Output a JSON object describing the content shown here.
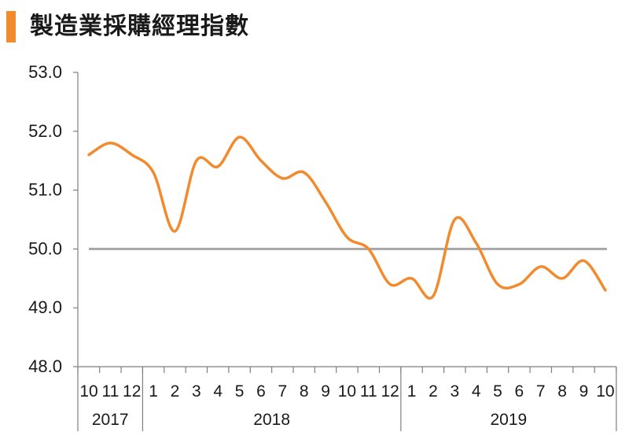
{
  "title": "製造業採購經理指數",
  "colors": {
    "accent": "#f28a2e",
    "line": "#f28a2e",
    "reference": "#a6a6a6",
    "axis": "#7f7f7f"
  },
  "chart_data": {
    "type": "line",
    "title": "製造業採購經理指數",
    "xlabel": "",
    "ylabel": "",
    "ylim": [
      48.0,
      53.0
    ],
    "y_ticks": [
      "53.0",
      "52.0",
      "51.0",
      "50.0",
      "49.0",
      "48.0"
    ],
    "categories": [
      "10",
      "11",
      "12",
      "1",
      "2",
      "3",
      "4",
      "5",
      "6",
      "7",
      "8",
      "9",
      "10",
      "11",
      "12",
      "1",
      "2",
      "3",
      "4",
      "5",
      "6",
      "7",
      "8",
      "9",
      "10"
    ],
    "year_groups": [
      {
        "label": "2017",
        "count": 3
      },
      {
        "label": "2018",
        "count": 12
      },
      {
        "label": "2019",
        "count": 10
      }
    ],
    "series": [
      {
        "values": [
          51.6,
          51.8,
          51.6,
          51.3,
          50.3,
          51.5,
          51.4,
          51.9,
          51.5,
          51.2,
          51.3,
          50.8,
          50.2,
          50.0,
          49.4,
          49.5,
          49.2,
          50.5,
          50.1,
          49.4,
          49.4,
          49.7,
          49.5,
          49.8,
          49.3
        ]
      }
    ],
    "reference_line": 50.0,
    "grid": false,
    "legend": "none"
  }
}
